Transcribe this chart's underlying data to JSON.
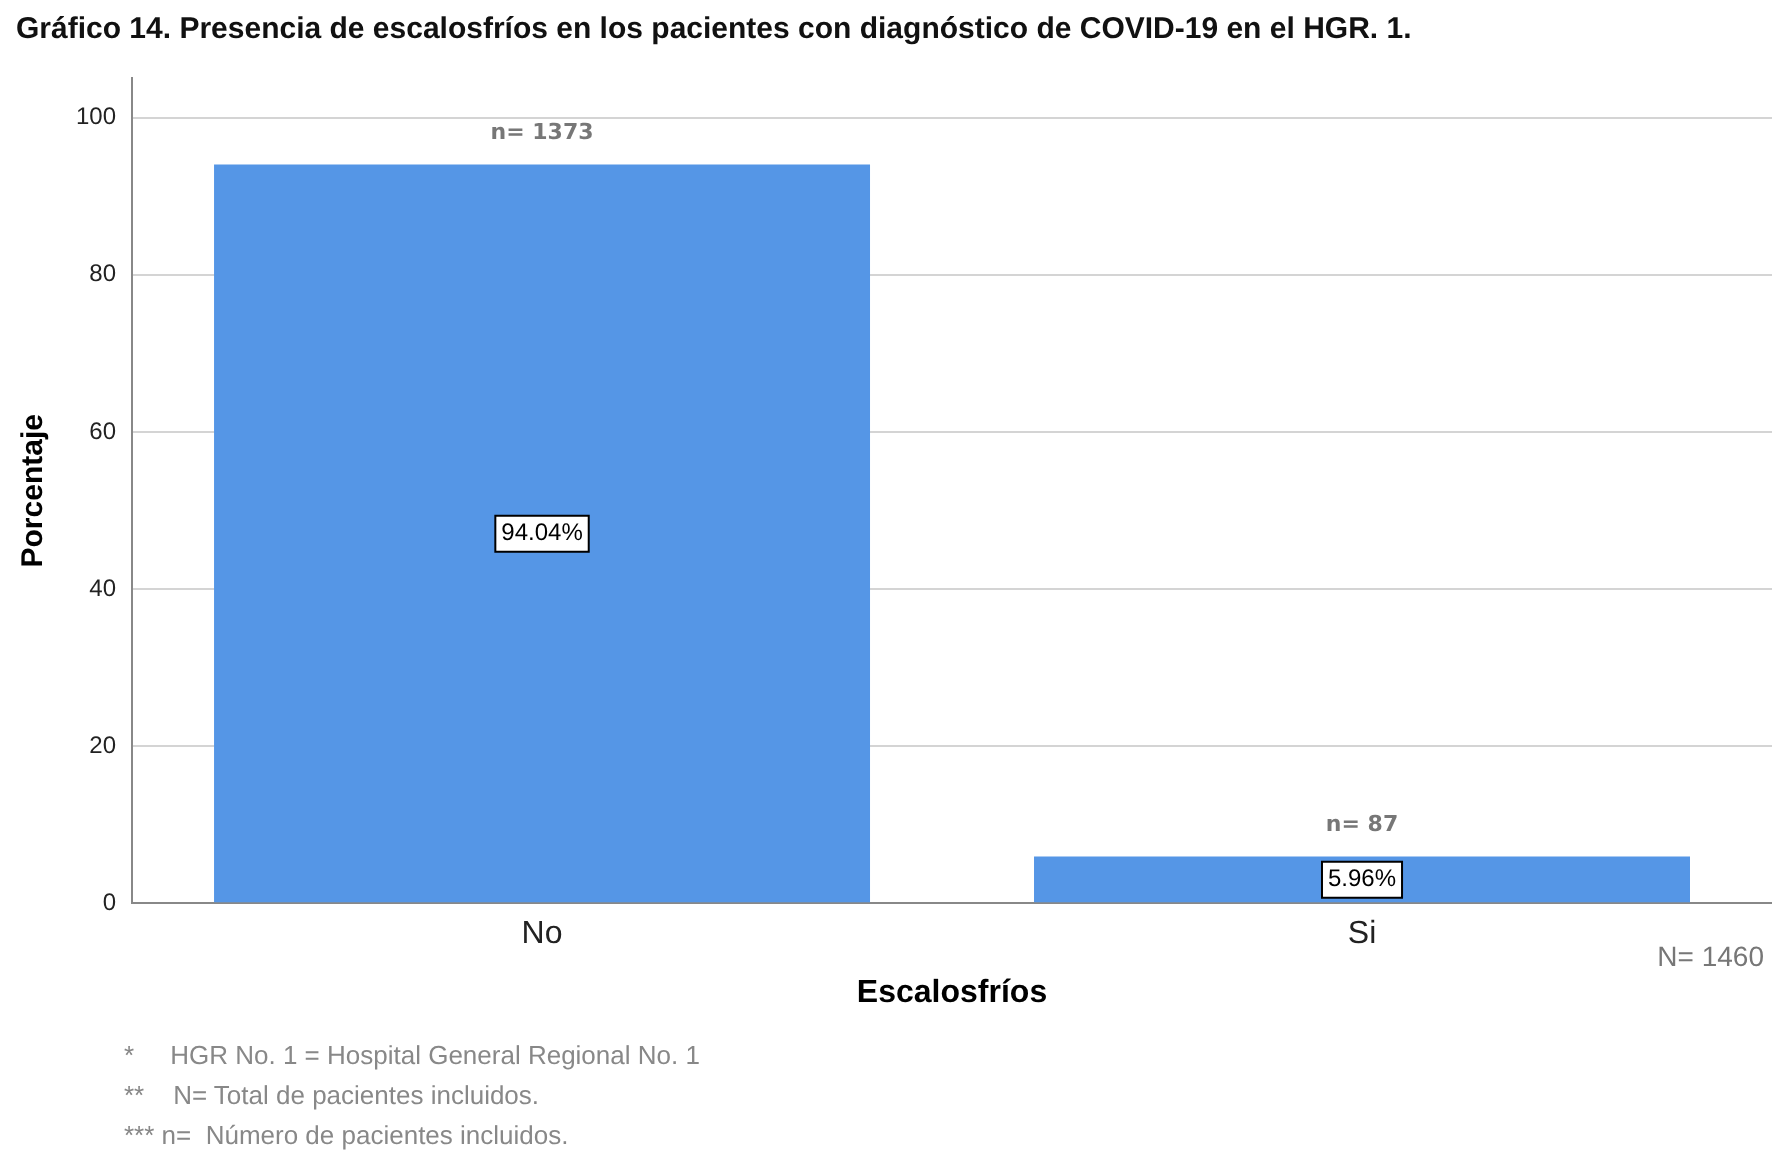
{
  "chart_data": {
    "type": "bar",
    "title": "Gráfico 14. Presencia de escalosfríos en los pacientes con diagnóstico de COVID-19 en el HGR. 1.",
    "xlabel": "Escalosfríos",
    "ylabel": "Porcentaje",
    "categories": [
      "No",
      "Si"
    ],
    "values": [
      94.04,
      5.96
    ],
    "value_labels": [
      "94.04%",
      "5.96%"
    ],
    "color": "#5596e6",
    "ylim": [
      0,
      105
    ],
    "yticks": [
      0,
      20,
      40,
      60,
      80,
      100
    ],
    "grid": "y",
    "annotations": [
      {
        "text": "n= 1373",
        "x": "No",
        "y": 94.04
      },
      {
        "text": "n= 87",
        "x": "Si",
        "y": 5.96
      },
      "N= 1460",
      "*     HGR No. 1 = Hospital General Regional No. 1",
      "**    N= Total de pacientes incluidos.",
      "*** n=  Número de pacientes incluidos."
    ]
  }
}
